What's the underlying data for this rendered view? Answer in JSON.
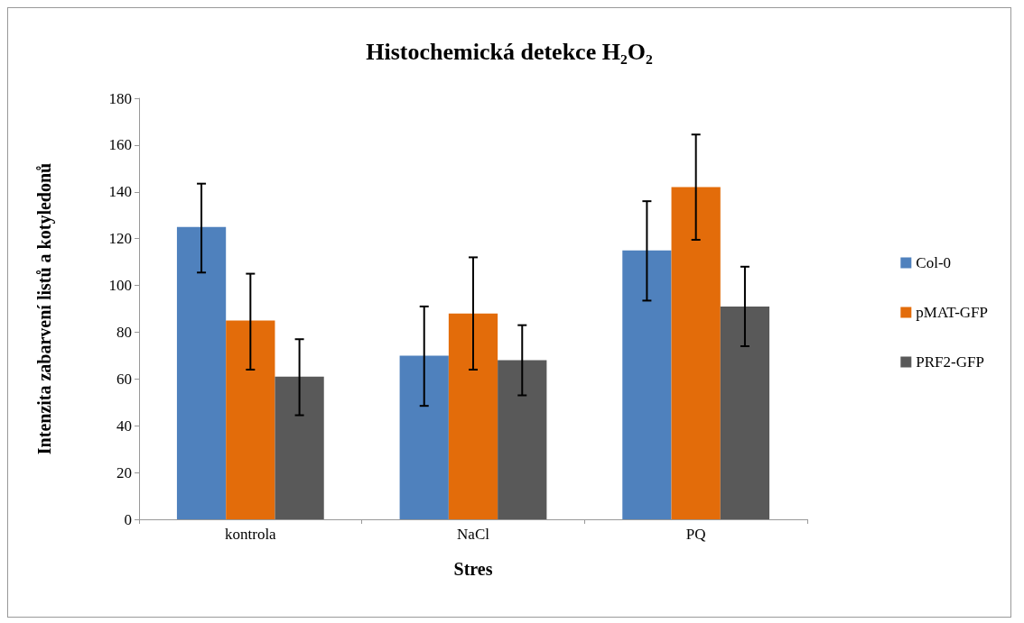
{
  "chart_data": {
    "type": "bar",
    "title": "Histochemická detekce H₂O₂",
    "xlabel": "Stres",
    "ylabel": "Intenzita zabarvení listů a kotyledonů",
    "categories": [
      "kontrola",
      "NaCl",
      "PQ"
    ],
    "series": [
      {
        "name": "Col-0",
        "color": "#4f81bd",
        "values": [
          125,
          70,
          115
        ],
        "errors": [
          [
            105.5,
            143.5
          ],
          [
            48.5,
            91
          ],
          [
            93.5,
            136
          ]
        ]
      },
      {
        "name": "pMAT-GFP",
        "color": "#e36c0a",
        "values": [
          85,
          88,
          142
        ],
        "errors": [
          [
            64,
            105
          ],
          [
            64,
            112
          ],
          [
            119.5,
            164.5
          ]
        ]
      },
      {
        "name": "PRF2-GFP",
        "color": "#595959",
        "values": [
          61,
          68,
          91
        ],
        "errors": [
          [
            44.5,
            77
          ],
          [
            53,
            83
          ],
          [
            74,
            108
          ]
        ]
      }
    ],
    "ylim": [
      0,
      180
    ],
    "yticks": [
      0,
      20,
      40,
      60,
      80,
      100,
      120,
      140,
      160,
      180
    ],
    "grid": false,
    "legend": "right"
  }
}
